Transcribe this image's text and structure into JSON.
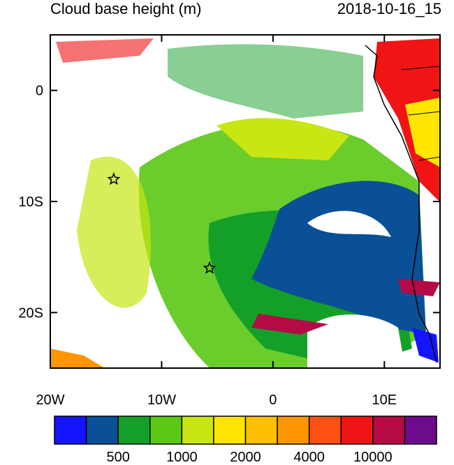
{
  "title": "Cloud base height (m)",
  "timestamp": "2018-10-16_15",
  "map": {
    "lon_range": [
      -20,
      15
    ],
    "lat_range": [
      -25,
      5
    ],
    "lon_ticks": [
      {
        "value": -20,
        "label": "20W"
      },
      {
        "value": -10,
        "label": "10W"
      },
      0,
      {
        "value": 10,
        "label": "10E"
      }
    ],
    "lat_ticks": [
      0,
      {
        "value": -10,
        "label": "10S"
      },
      {
        "value": -20,
        "label": "20S"
      }
    ],
    "markers": [
      {
        "lon": -14.3,
        "lat": -8
      },
      {
        "lon": -5.7,
        "lat": -16
      }
    ]
  },
  "colorbar": {
    "colors": [
      "#1414ff",
      "#0a5096",
      "#14a028",
      "#5ac814",
      "#c8e614",
      "#ffe600",
      "#ffbe00",
      "#ff9600",
      "#ff5014",
      "#f01414",
      "#b40a46",
      "#6e0a8c"
    ],
    "labels": [
      500,
      1000,
      2000,
      4000,
      10000
    ]
  }
}
